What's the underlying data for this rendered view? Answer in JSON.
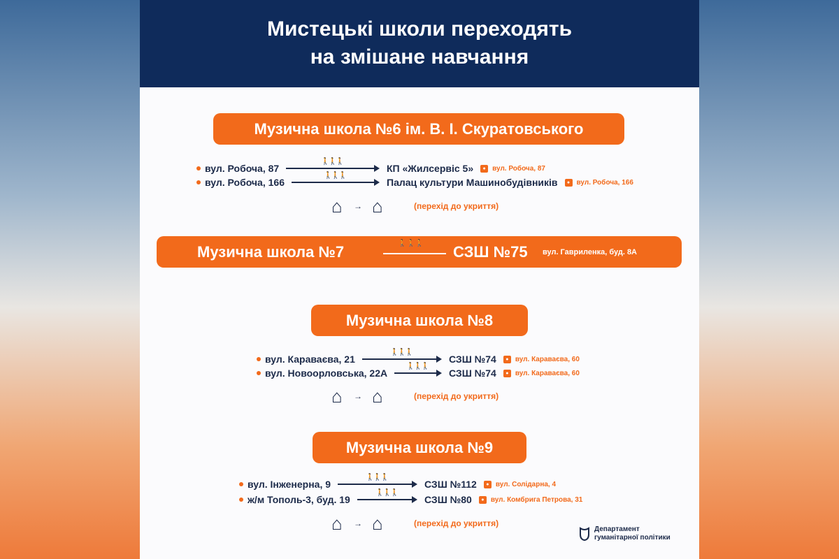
{
  "title_line1": "Мистецькі школи переходять",
  "title_line2": "на змішане навчання",
  "colors": {
    "navy": "#0f2b5b",
    "orange": "#f26a1b"
  },
  "shelter_note": "(перехід до укриття)",
  "sections": [
    {
      "name": "Музична школа №6 ім. В. І. Скуратовського",
      "rows": [
        {
          "from": "вул. Робоча, 87",
          "to": "КП «Жилсервіс 5»",
          "to_address": "вул. Робоча, 87"
        },
        {
          "from": "вул. Робоча, 166",
          "to": "Палац культури Машинобудівників",
          "to_address": "вул. Робоча, 166"
        }
      ]
    },
    {
      "name": "Музична школа №7",
      "to": "СЗШ №75",
      "to_address": "вул. Гавриленка, буд. 8А"
    },
    {
      "name": "Музична школа №8",
      "rows": [
        {
          "from": "вул. Караваєва, 21",
          "to": "СЗШ №74",
          "to_address": "вул. Караваєва, 60"
        },
        {
          "from": "вул. Новоорловська, 22А",
          "to": "СЗШ №74",
          "to_address": "вул. Караваєва, 60"
        }
      ]
    },
    {
      "name": "Музична школа №9",
      "rows": [
        {
          "from": "вул. Інженерна, 9",
          "to": "СЗШ №112",
          "to_address": "вул. Солідарна, 4"
        },
        {
          "from": "ж/м Тополь-3, буд. 19",
          "to": "СЗШ №80",
          "to_address": "вул. Комбрига Петрова, 31"
        }
      ]
    }
  ],
  "logo": {
    "line1": "Департамент",
    "line2": "гуманітарної політики"
  }
}
